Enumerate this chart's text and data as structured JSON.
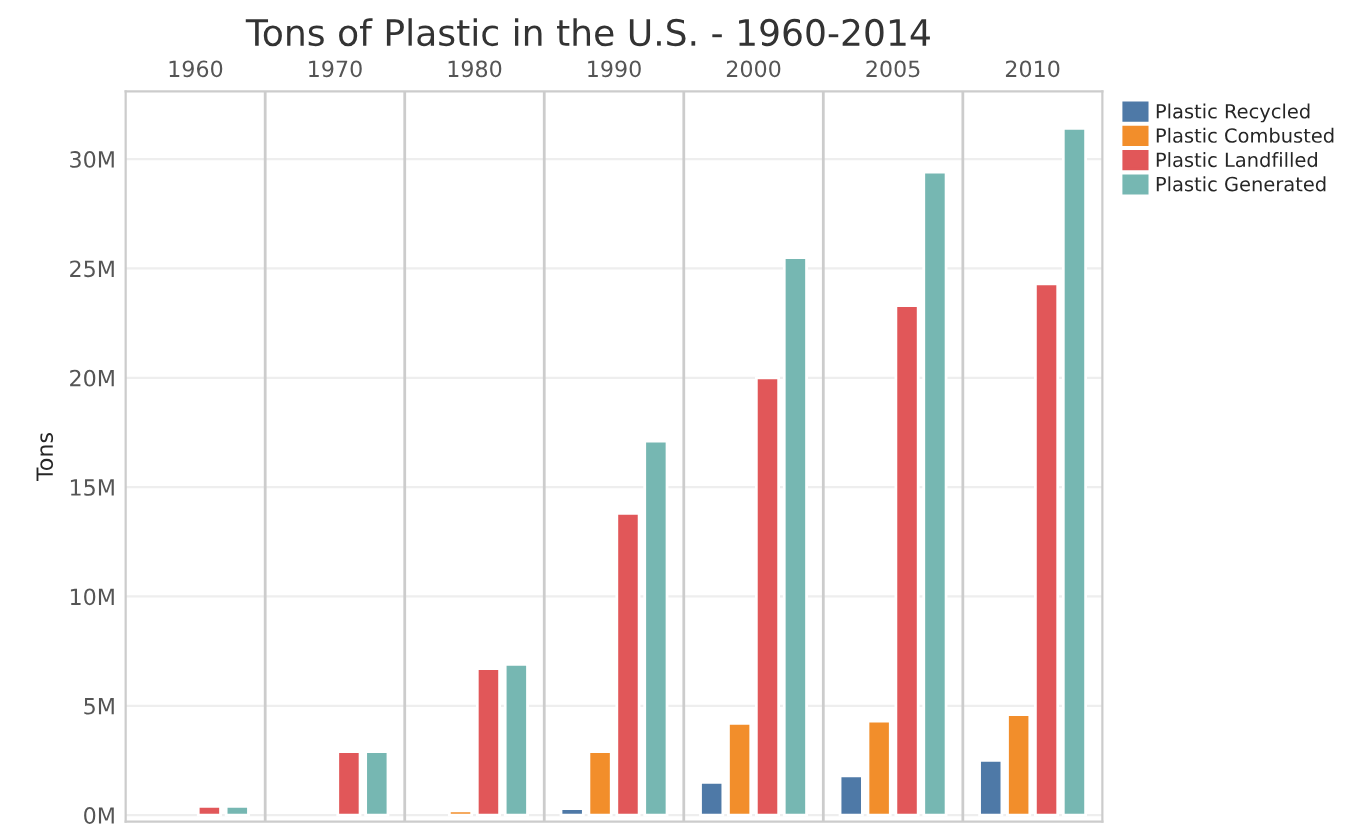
{
  "chart_data": {
    "type": "bar",
    "title": "Tons of Plastic in the U.S. - 1960-2014",
    "ylabel": "Tons",
    "categories": [
      "1960",
      "1970",
      "1980",
      "1990",
      "2000",
      "2005",
      "2010"
    ],
    "series": [
      {
        "name": "Plastic Recycled",
        "color": "#4e79a7",
        "values": [
          null,
          null,
          null,
          300000,
          1500000,
          1800000,
          2500000
        ]
      },
      {
        "name": "Plastic Combusted",
        "color": "#f28e2b",
        "values": [
          null,
          null,
          200000,
          2900000,
          4200000,
          4300000,
          4600000
        ]
      },
      {
        "name": "Plastic Landfilled",
        "color": "#e15759",
        "values": [
          400000,
          2900000,
          6700000,
          13800000,
          20000000,
          23300000,
          24300000
        ]
      },
      {
        "name": "Plastic Generated",
        "color": "#76b7b2",
        "values": [
          400000,
          2900000,
          6900000,
          17100000,
          25500000,
          29400000,
          31400000
        ]
      }
    ],
    "ylim": [
      -300000,
      33100000
    ],
    "yticks": [
      {
        "value": 0,
        "label": "0M"
      },
      {
        "value": 5000000,
        "label": "5M"
      },
      {
        "value": 10000000,
        "label": "10M"
      },
      {
        "value": 15000000,
        "label": "15M"
      },
      {
        "value": 20000000,
        "label": "20M"
      },
      {
        "value": 25000000,
        "label": "25M"
      },
      {
        "value": 30000000,
        "label": "30M"
      }
    ],
    "grid": "y",
    "legend": "top right"
  }
}
